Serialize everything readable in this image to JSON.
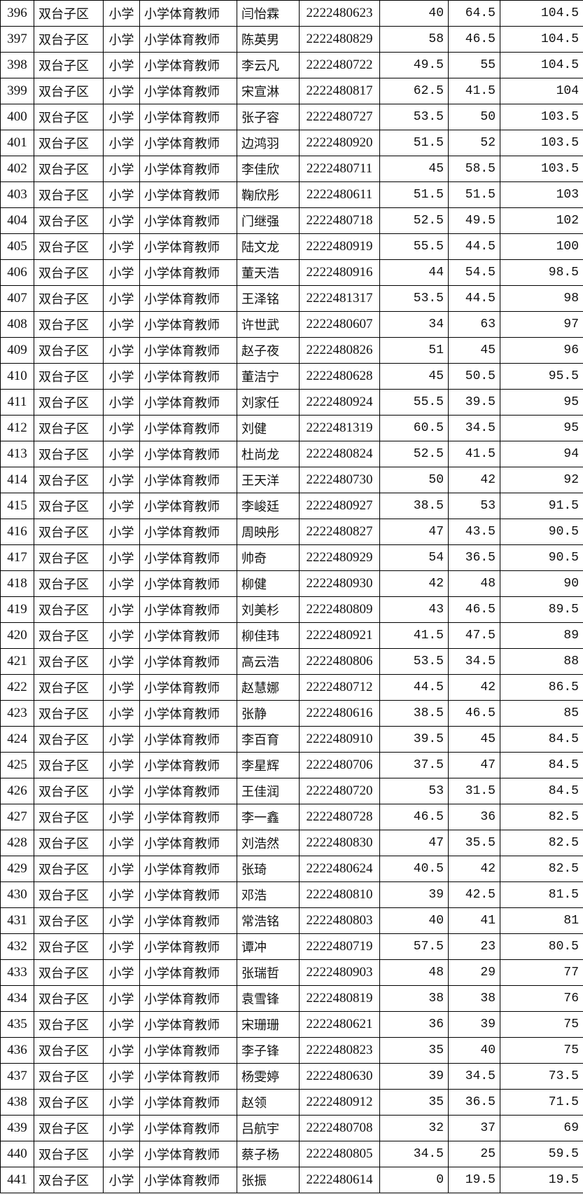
{
  "columns_count": 10,
  "rows": [
    [
      "396",
      "双台子区",
      "小学",
      "小学体育教师",
      "闫怡霖",
      "2222480623",
      "40",
      "64.5",
      "104.5"
    ],
    [
      "397",
      "双台子区",
      "小学",
      "小学体育教师",
      "陈英男",
      "2222480829",
      "58",
      "46.5",
      "104.5"
    ],
    [
      "398",
      "双台子区",
      "小学",
      "小学体育教师",
      "李云凡",
      "2222480722",
      "49.5",
      "55",
      "104.5"
    ],
    [
      "399",
      "双台子区",
      "小学",
      "小学体育教师",
      "宋宣淋",
      "2222480817",
      "62.5",
      "41.5",
      "104"
    ],
    [
      "400",
      "双台子区",
      "小学",
      "小学体育教师",
      "张子容",
      "2222480727",
      "53.5",
      "50",
      "103.5"
    ],
    [
      "401",
      "双台子区",
      "小学",
      "小学体育教师",
      "边鸿羽",
      "2222480920",
      "51.5",
      "52",
      "103.5"
    ],
    [
      "402",
      "双台子区",
      "小学",
      "小学体育教师",
      "李佳欣",
      "2222480711",
      "45",
      "58.5",
      "103.5"
    ],
    [
      "403",
      "双台子区",
      "小学",
      "小学体育教师",
      "鞠欣彤",
      "2222480611",
      "51.5",
      "51.5",
      "103"
    ],
    [
      "404",
      "双台子区",
      "小学",
      "小学体育教师",
      "门继强",
      "2222480718",
      "52.5",
      "49.5",
      "102"
    ],
    [
      "405",
      "双台子区",
      "小学",
      "小学体育教师",
      "陆文龙",
      "2222480919",
      "55.5",
      "44.5",
      "100"
    ],
    [
      "406",
      "双台子区",
      "小学",
      "小学体育教师",
      "董天浩",
      "2222480916",
      "44",
      "54.5",
      "98.5"
    ],
    [
      "407",
      "双台子区",
      "小学",
      "小学体育教师",
      "王泽铭",
      "2222481317",
      "53.5",
      "44.5",
      "98"
    ],
    [
      "408",
      "双台子区",
      "小学",
      "小学体育教师",
      "许世武",
      "2222480607",
      "34",
      "63",
      "97"
    ],
    [
      "409",
      "双台子区",
      "小学",
      "小学体育教师",
      "赵子夜",
      "2222480826",
      "51",
      "45",
      "96"
    ],
    [
      "410",
      "双台子区",
      "小学",
      "小学体育教师",
      "董洁宁",
      "2222480628",
      "45",
      "50.5",
      "95.5"
    ],
    [
      "411",
      "双台子区",
      "小学",
      "小学体育教师",
      "刘家任",
      "2222480924",
      "55.5",
      "39.5",
      "95"
    ],
    [
      "412",
      "双台子区",
      "小学",
      "小学体育教师",
      "刘健",
      "2222481319",
      "60.5",
      "34.5",
      "95"
    ],
    [
      "413",
      "双台子区",
      "小学",
      "小学体育教师",
      "杜尚龙",
      "2222480824",
      "52.5",
      "41.5",
      "94"
    ],
    [
      "414",
      "双台子区",
      "小学",
      "小学体育教师",
      "王天洋",
      "2222480730",
      "50",
      "42",
      "92"
    ],
    [
      "415",
      "双台子区",
      "小学",
      "小学体育教师",
      "李峻廷",
      "2222480927",
      "38.5",
      "53",
      "91.5"
    ],
    [
      "416",
      "双台子区",
      "小学",
      "小学体育教师",
      "周映彤",
      "2222480827",
      "47",
      "43.5",
      "90.5"
    ],
    [
      "417",
      "双台子区",
      "小学",
      "小学体育教师",
      "帅奇",
      "2222480929",
      "54",
      "36.5",
      "90.5"
    ],
    [
      "418",
      "双台子区",
      "小学",
      "小学体育教师",
      "柳健",
      "2222480930",
      "42",
      "48",
      "90"
    ],
    [
      "419",
      "双台子区",
      "小学",
      "小学体育教师",
      "刘美杉",
      "2222480809",
      "43",
      "46.5",
      "89.5"
    ],
    [
      "420",
      "双台子区",
      "小学",
      "小学体育教师",
      "柳佳玮",
      "2222480921",
      "41.5",
      "47.5",
      "89"
    ],
    [
      "421",
      "双台子区",
      "小学",
      "小学体育教师",
      "高云浩",
      "2222480806",
      "53.5",
      "34.5",
      "88"
    ],
    [
      "422",
      "双台子区",
      "小学",
      "小学体育教师",
      "赵慧娜",
      "2222480712",
      "44.5",
      "42",
      "86.5"
    ],
    [
      "423",
      "双台子区",
      "小学",
      "小学体育教师",
      "张静",
      "2222480616",
      "38.5",
      "46.5",
      "85"
    ],
    [
      "424",
      "双台子区",
      "小学",
      "小学体育教师",
      "李百育",
      "2222480910",
      "39.5",
      "45",
      "84.5"
    ],
    [
      "425",
      "双台子区",
      "小学",
      "小学体育教师",
      "李星辉",
      "2222480706",
      "37.5",
      "47",
      "84.5"
    ],
    [
      "426",
      "双台子区",
      "小学",
      "小学体育教师",
      "王佳润",
      "2222480720",
      "53",
      "31.5",
      "84.5"
    ],
    [
      "427",
      "双台子区",
      "小学",
      "小学体育教师",
      "李一鑫",
      "2222480728",
      "46.5",
      "36",
      "82.5"
    ],
    [
      "428",
      "双台子区",
      "小学",
      "小学体育教师",
      "刘浩然",
      "2222480830",
      "47",
      "35.5",
      "82.5"
    ],
    [
      "429",
      "双台子区",
      "小学",
      "小学体育教师",
      "张琦",
      "2222480624",
      "40.5",
      "42",
      "82.5"
    ],
    [
      "430",
      "双台子区",
      "小学",
      "小学体育教师",
      "邓浩",
      "2222480810",
      "39",
      "42.5",
      "81.5"
    ],
    [
      "431",
      "双台子区",
      "小学",
      "小学体育教师",
      "常浩铭",
      "2222480803",
      "40",
      "41",
      "81"
    ],
    [
      "432",
      "双台子区",
      "小学",
      "小学体育教师",
      "谭冲",
      "2222480719",
      "57.5",
      "23",
      "80.5"
    ],
    [
      "433",
      "双台子区",
      "小学",
      "小学体育教师",
      "张瑞哲",
      "2222480903",
      "48",
      "29",
      "77"
    ],
    [
      "434",
      "双台子区",
      "小学",
      "小学体育教师",
      "袁雪锋",
      "2222480819",
      "38",
      "38",
      "76"
    ],
    [
      "435",
      "双台子区",
      "小学",
      "小学体育教师",
      "宋珊珊",
      "2222480621",
      "36",
      "39",
      "75"
    ],
    [
      "436",
      "双台子区",
      "小学",
      "小学体育教师",
      "李子锋",
      "2222480823",
      "35",
      "40",
      "75"
    ],
    [
      "437",
      "双台子区",
      "小学",
      "小学体育教师",
      "杨雯婷",
      "2222480630",
      "39",
      "34.5",
      "73.5"
    ],
    [
      "438",
      "双台子区",
      "小学",
      "小学体育教师",
      "赵领",
      "2222480912",
      "35",
      "36.5",
      "71.5"
    ],
    [
      "439",
      "双台子区",
      "小学",
      "小学体育教师",
      "吕航宇",
      "2222480708",
      "32",
      "37",
      "69"
    ],
    [
      "440",
      "双台子区",
      "小学",
      "小学体育教师",
      "蔡子杨",
      "2222480805",
      "34.5",
      "25",
      "59.5"
    ],
    [
      "441",
      "双台子区",
      "小学",
      "小学体育教师",
      "张振",
      "2222480614",
      "0",
      "19.5",
      "19.5"
    ]
  ]
}
